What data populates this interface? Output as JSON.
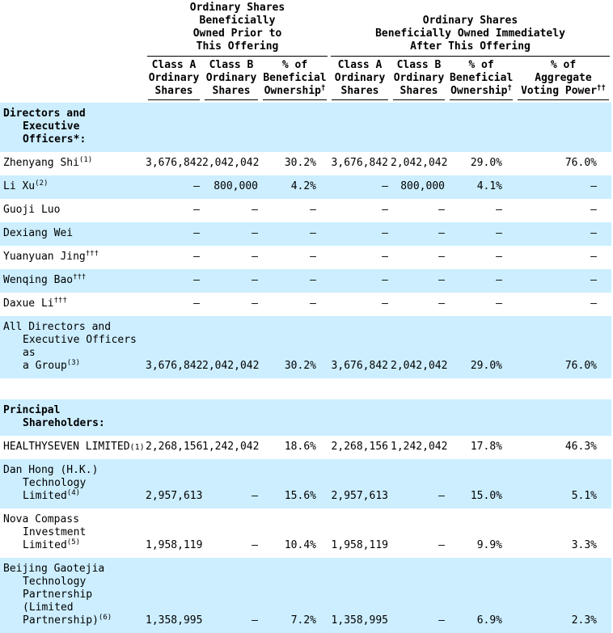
{
  "colors": {
    "stripe": "#cceeff",
    "text": "#000000",
    "background": "#ffffff",
    "rule": "#000000"
  },
  "table": {
    "groups": [
      {
        "title_lines": [
          "Ordinary Shares",
          "Beneficially",
          "Owned Prior to",
          "This Offering"
        ]
      },
      {
        "title_lines": [
          "Ordinary Shares",
          "Beneficially Owned Immediately",
          "After This Offering"
        ]
      }
    ],
    "columns": [
      {
        "lines": [
          "Class A",
          "Ordinary",
          "Shares"
        ],
        "sup": ""
      },
      {
        "lines": [
          "Class B",
          "Ordinary",
          "Shares"
        ],
        "sup": ""
      },
      {
        "lines": [
          "% of",
          "Beneficial",
          "Ownership"
        ],
        "sup": "†"
      },
      {
        "lines": [
          "Class A",
          "Ordinary",
          "Shares"
        ],
        "sup": ""
      },
      {
        "lines": [
          "Class B",
          "Ordinary",
          "Shares"
        ],
        "sup": ""
      },
      {
        "lines": [
          "% of",
          "Beneficial",
          "Ownership"
        ],
        "sup": "†"
      },
      {
        "lines": [
          "% of",
          "Aggregate",
          "Voting Power"
        ],
        "sup": "††"
      }
    ],
    "rows": [
      {
        "label_lines": [
          "Directors and",
          "Executive",
          "Officers*:"
        ],
        "values": [
          "",
          "",
          "",
          "",
          "",
          "",
          ""
        ]
      },
      {
        "label_lines": [
          "Zhenyang Shi"
        ],
        "sup": "(1)",
        "values": [
          "3,676,842",
          "2,042,042",
          "30.2%",
          "3,676,842",
          "2,042,042",
          "29.0%",
          "76.0%"
        ]
      },
      {
        "label_lines": [
          "Li Xu"
        ],
        "sup": "(2)",
        "values": [
          "—",
          "800,000",
          "4.2%",
          "—",
          "800,000",
          "4.1%",
          "—"
        ]
      },
      {
        "label_lines": [
          "Guoji Luo"
        ],
        "values": [
          "—",
          "—",
          "—",
          "—",
          "—",
          "—",
          "—"
        ]
      },
      {
        "label_lines": [
          "Dexiang Wei"
        ],
        "values": [
          "—",
          "—",
          "—",
          "—",
          "—",
          "—",
          "—"
        ]
      },
      {
        "label_lines": [
          "Yuanyuan Jing"
        ],
        "sup": "†††",
        "values": [
          "—",
          "—",
          "—",
          "—",
          "—",
          "—",
          "—"
        ]
      },
      {
        "label_lines": [
          "Wenqing Bao"
        ],
        "sup": "†††",
        "values": [
          "—",
          "—",
          "—",
          "—",
          "—",
          "—",
          "—"
        ]
      },
      {
        "label_lines": [
          "Daxue Li"
        ],
        "sup": "†††",
        "values": [
          "—",
          "—",
          "—",
          "—",
          "—",
          "—",
          "—"
        ]
      },
      {
        "label_lines": [
          "All Directors and",
          "Executive Officers as",
          "a Group"
        ],
        "sup": "(3)",
        "values": [
          "3,676,842",
          "2,042,042",
          "30.2%",
          "3,676,842",
          "2,042,042",
          "29.0%",
          "76.0%"
        ]
      },
      {
        "label_lines": [
          "Principal",
          "Shareholders:"
        ],
        "values": [
          "",
          "",
          "",
          "",
          "",
          "",
          ""
        ]
      },
      {
        "label_lines": [
          "HEALTHYSEVEN LIMITED"
        ],
        "fnote": "(1)",
        "values": [
          "2,268,156",
          "1,242,042",
          "18.6%",
          "2,268,156",
          "1,242,042",
          "17.8%",
          "46.3%"
        ]
      },
      {
        "label_lines": [
          "Dan Hong (H.K.)",
          "Technology Limited"
        ],
        "sup": "(4)",
        "values": [
          "2,957,613",
          "—",
          "15.6%",
          "2,957,613",
          "—",
          "15.0%",
          "5.1%"
        ]
      },
      {
        "label_lines": [
          "Nova Compass Investment",
          "Limited"
        ],
        "sup": "(5)",
        "values": [
          "1,958,119",
          "—",
          "10.4%",
          "1,958,119",
          "—",
          "9.9%",
          "3.3%"
        ]
      },
      {
        "label_lines": [
          "Beijing Gaotejia",
          "Technology",
          "Partnership (Limited",
          "Partnership)"
        ],
        "sup": "(6)",
        "values": [
          "1,358,995",
          "—",
          "7.2%",
          "1,358,995",
          "—",
          "6.9%",
          "2.3%"
        ]
      }
    ]
  }
}
